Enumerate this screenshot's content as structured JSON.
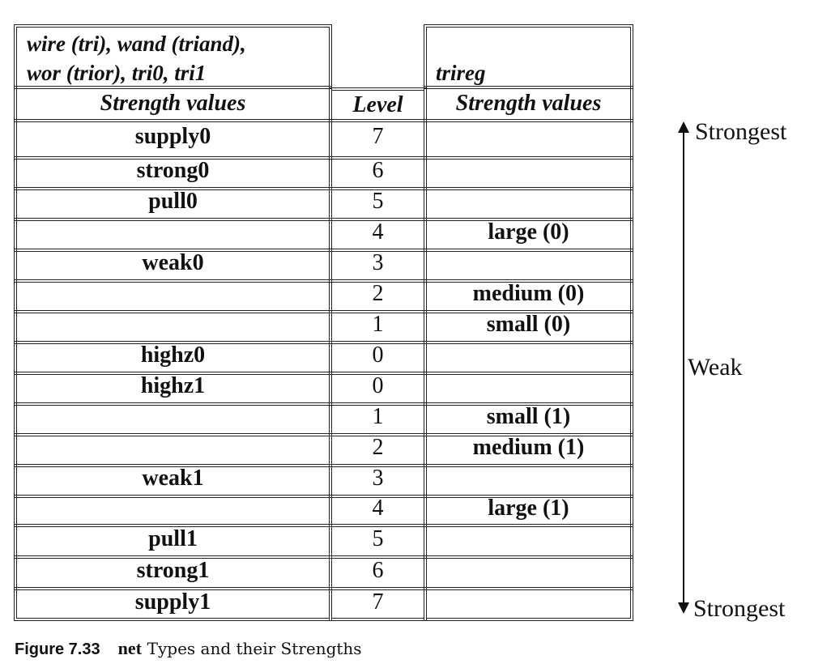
{
  "table": {
    "left_header": "wire (tri), wand (triand),\nwor (trior), tri0, tri1",
    "right_header": "trireg",
    "col_left": "Strength values",
    "col_level": "Level",
    "col_right": "Strength values",
    "rows": [
      {
        "wire": "supply0",
        "level": "7",
        "trireg": ""
      },
      {
        "wire": "strong0",
        "level": "6",
        "trireg": ""
      },
      {
        "wire": "pull0",
        "level": "5",
        "trireg": ""
      },
      {
        "wire": "",
        "level": "4",
        "trireg": "large (0)"
      },
      {
        "wire": "weak0",
        "level": "3",
        "trireg": ""
      },
      {
        "wire": "",
        "level": "2",
        "trireg": "medium (0)"
      },
      {
        "wire": "",
        "level": "1",
        "trireg": "small (0)"
      },
      {
        "wire": "highz0",
        "level": "0",
        "trireg": ""
      },
      {
        "wire": "highz1",
        "level": "0",
        "trireg": ""
      },
      {
        "wire": "",
        "level": "1",
        "trireg": "small (1)"
      },
      {
        "wire": "",
        "level": "2",
        "trireg": "medium (1)"
      },
      {
        "wire": "weak1",
        "level": "3",
        "trireg": ""
      },
      {
        "wire": "",
        "level": "4",
        "trireg": "large (1)"
      },
      {
        "wire": "pull1",
        "level": "5",
        "trireg": ""
      },
      {
        "wire": "strong1",
        "level": "6",
        "trireg": ""
      },
      {
        "wire": "supply1",
        "level": "7",
        "trireg": ""
      }
    ]
  },
  "side": {
    "top_label": "Strongest",
    "middle_label": "Weak",
    "bottom_label": "Strongest"
  },
  "caption": {
    "number": "Figure 7.33",
    "keyword": "net",
    "text": "Types and their Strengths"
  }
}
